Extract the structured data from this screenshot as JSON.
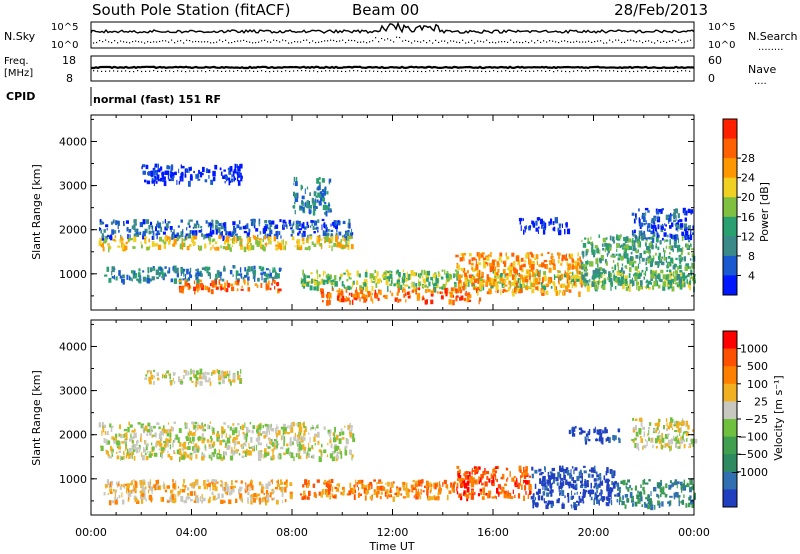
{
  "header": {
    "title": "South Pole Station (fitACF)",
    "beam": "Beam 00",
    "date": "28/Feb/2013"
  },
  "summary_panels": {
    "nsky_label": "N.Sky",
    "nsearch_label": "N.Search",
    "nsearch_legend": "........",
    "exp_top_label": "10^5",
    "exp_bottom_label": "10^0",
    "freq_label_1": "Freq.",
    "freq_label_2": "[MHz]",
    "freq_ticks": [
      "18",
      "8"
    ],
    "nave_label": "Nave",
    "nave_legend": "....",
    "nave_ticks": [
      "60",
      "0"
    ],
    "cpid_label": "CPID",
    "cpid_text": "normal (fast) 151 RF"
  },
  "chart_data": [
    {
      "type": "heatmap",
      "name": "power",
      "xlabel": "",
      "ylabel": "Slant Range [km]",
      "x_ticks": [
        "00:00",
        "04:00",
        "08:00",
        "12:00",
        "16:00",
        "20:00",
        "00:00"
      ],
      "y_ticks": [
        "1000",
        "2000",
        "3000",
        "4000"
      ],
      "y_tick_values": [
        1000,
        2000,
        3000,
        4000
      ],
      "ylim": [
        180,
        4600
      ],
      "xlim_hours": [
        0,
        24
      ],
      "colorbar": {
        "label": "Power [dB]",
        "ticks": [
          "4",
          "8",
          "12",
          "16",
          "20",
          "24",
          "28"
        ],
        "colors": [
          "#0018ff",
          "#1a5ad0",
          "#3a8a8a",
          "#2aa070",
          "#80c040",
          "#f0d020",
          "#ff9800",
          "#ff6000",
          "#ff2000"
        ]
      },
      "bands": [
        {
          "t0": 0.3,
          "t1": 10.4,
          "r0": 1850,
          "r1": 2250,
          "level": 1
        },
        {
          "t0": 0.3,
          "t1": 10.4,
          "r0": 1600,
          "r1": 1880,
          "level": 5
        },
        {
          "t0": 0.5,
          "t1": 7.5,
          "r0": 880,
          "r1": 1200,
          "level": 2
        },
        {
          "t0": 3.3,
          "t1": 7.5,
          "r0": 650,
          "r1": 880,
          "level": 7
        },
        {
          "t0": 8.3,
          "t1": 24,
          "r0": 700,
          "r1": 1100,
          "level": 4
        },
        {
          "t0": 9.0,
          "t1": 15.5,
          "r0": 400,
          "r1": 700,
          "level": 7
        },
        {
          "t0": 14.5,
          "t1": 19.5,
          "r0": 600,
          "r1": 1500,
          "level": 6
        },
        {
          "t0": 19.5,
          "t1": 24,
          "r0": 800,
          "r1": 1900,
          "level": 3
        },
        {
          "t0": 21.5,
          "t1": 24,
          "r0": 1800,
          "r1": 2500,
          "level": 1
        },
        {
          "t0": 17.0,
          "t1": 19.0,
          "r0": 2000,
          "r1": 2300,
          "level": 0
        },
        {
          "t0": 2.0,
          "t1": 6.0,
          "r0": 3100,
          "r1": 3500,
          "level": 0
        },
        {
          "t0": 8.0,
          "t1": 9.5,
          "r0": 2400,
          "r1": 3200,
          "level": 2
        }
      ]
    },
    {
      "type": "heatmap",
      "name": "velocity",
      "xlabel": "Time UT",
      "ylabel": "Slant Range [km]",
      "x_ticks": [
        "00:00",
        "04:00",
        "08:00",
        "12:00",
        "16:00",
        "20:00",
        "00:00"
      ],
      "y_ticks": [
        "1000",
        "2000",
        "3000",
        "4000"
      ],
      "y_tick_values": [
        1000,
        2000,
        3000,
        4000
      ],
      "ylim": [
        180,
        4600
      ],
      "xlim_hours": [
        0,
        24
      ],
      "colorbar": {
        "label": "Velocity [m s⁻¹]",
        "ticks": [
          "1000",
          "500",
          "100",
          "25",
          "−25",
          "−100",
          "−500",
          "−1000"
        ],
        "colors": [
          "#2040c0",
          "#3070b0",
          "#2e8a60",
          "#40a050",
          "#70c040",
          "#c8c8c0",
          "#f0b020",
          "#ff8000",
          "#ff5000",
          "#ff0000"
        ]
      },
      "bands": [
        {
          "t0": 0.3,
          "t1": 10.4,
          "r0": 1500,
          "r1": 2300,
          "level": 5
        },
        {
          "t0": 0.5,
          "t1": 8.0,
          "r0": 500,
          "r1": 1000,
          "level": 6
        },
        {
          "t0": 8.3,
          "t1": 14.5,
          "r0": 600,
          "r1": 1000,
          "level": 7
        },
        {
          "t0": 14.5,
          "t1": 17.5,
          "r0": 600,
          "r1": 1300,
          "level": 8
        },
        {
          "t0": 17.5,
          "t1": 21.0,
          "r0": 400,
          "r1": 1300,
          "level": 0
        },
        {
          "t0": 21.0,
          "t1": 24,
          "r0": 400,
          "r1": 1000,
          "level": 2
        },
        {
          "t0": 21.5,
          "t1": 24,
          "r0": 1700,
          "r1": 2400,
          "level": 5
        },
        {
          "t0": 2.0,
          "t1": 6.0,
          "r0": 3200,
          "r1": 3500,
          "level": 5
        },
        {
          "t0": 19.0,
          "t1": 21.0,
          "r0": 1900,
          "r1": 2200,
          "level": 0
        }
      ]
    }
  ]
}
